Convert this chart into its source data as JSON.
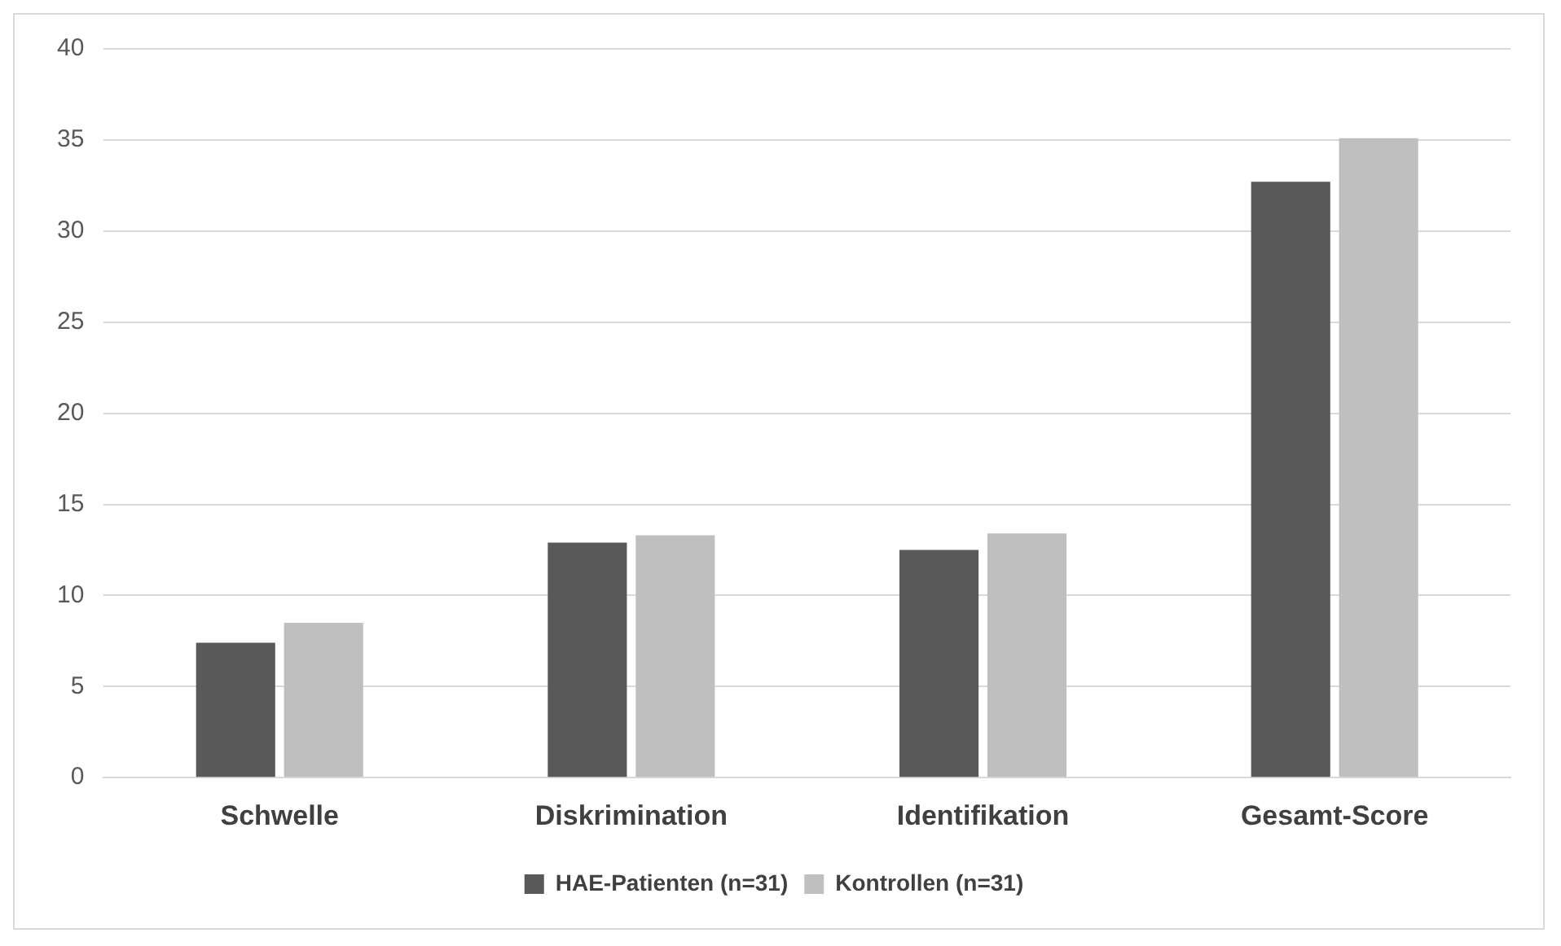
{
  "chart_data": {
    "type": "bar",
    "categories": [
      "Schwelle",
      "Diskrimination",
      "Identifikation",
      "Gesamt-Score"
    ],
    "series": [
      {
        "name": "HAE-Patienten (n=31)",
        "color": "#595959",
        "values": [
          7.4,
          12.9,
          12.5,
          32.7
        ]
      },
      {
        "name": "Kontrollen (n=31)",
        "color": "#bfbfbf",
        "values": [
          8.5,
          13.3,
          13.4,
          35.1
        ]
      }
    ],
    "ylim": [
      0,
      40
    ],
    "yticks": [
      0,
      5,
      10,
      15,
      20,
      25,
      30,
      35,
      40
    ],
    "grid": "y",
    "legend": "bottom"
  }
}
